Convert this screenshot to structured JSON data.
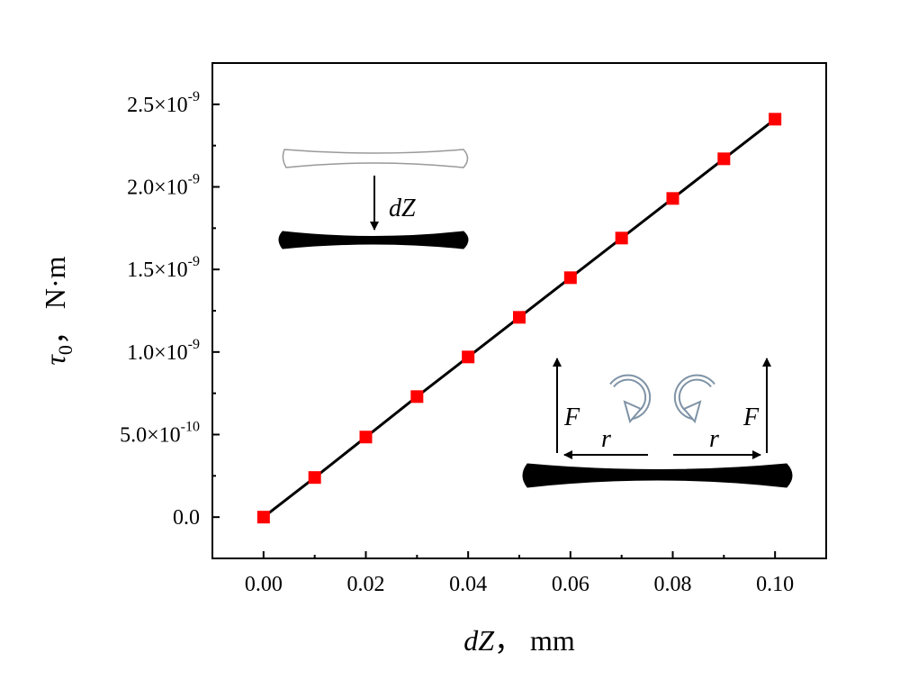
{
  "chart_data": {
    "type": "scatter",
    "title": "",
    "xlabel_var": "dZ",
    "xlabel_unit": "，  mm",
    "ylabel_var": "τ",
    "ylabel_sub": "0",
    "ylabel_unit": "，  N·m",
    "xlim": [
      -0.01,
      0.11
    ],
    "ylim": [
      -2.5e-10,
      2.75e-09
    ],
    "x_ticks": [
      "0.00",
      "0.02",
      "0.04",
      "0.06",
      "0.08",
      "0.10"
    ],
    "y_ticks": [
      {
        "mant": "0.0",
        "exp": ""
      },
      {
        "mant": "5.0×10",
        "exp": "-10"
      },
      {
        "mant": "1.0×10",
        "exp": "-9"
      },
      {
        "mant": "1.5×10",
        "exp": "-9"
      },
      {
        "mant": "2.0×10",
        "exp": "-9"
      },
      {
        "mant": "2.5×10",
        "exp": "-9"
      }
    ],
    "series": [
      {
        "x": [
          0.0,
          0.01,
          0.02,
          0.03,
          0.04,
          0.05,
          0.06,
          0.07,
          0.08,
          0.09,
          0.1
        ],
        "values": [
          0.0,
          2.4e-10,
          4.85e-10,
          7.3e-10,
          9.7e-10,
          1.21e-09,
          1.45e-09,
          1.69e-09,
          1.93e-09,
          2.17e-09,
          2.41e-09
        ],
        "marker_color": "#ff0000",
        "line_color": "#000000"
      }
    ],
    "grid": false,
    "annotations": {
      "inset_top_label": "dZ",
      "force_label_left": "F",
      "force_label_right": "F",
      "radius_label_left": "r",
      "radius_label_right": "r"
    }
  }
}
